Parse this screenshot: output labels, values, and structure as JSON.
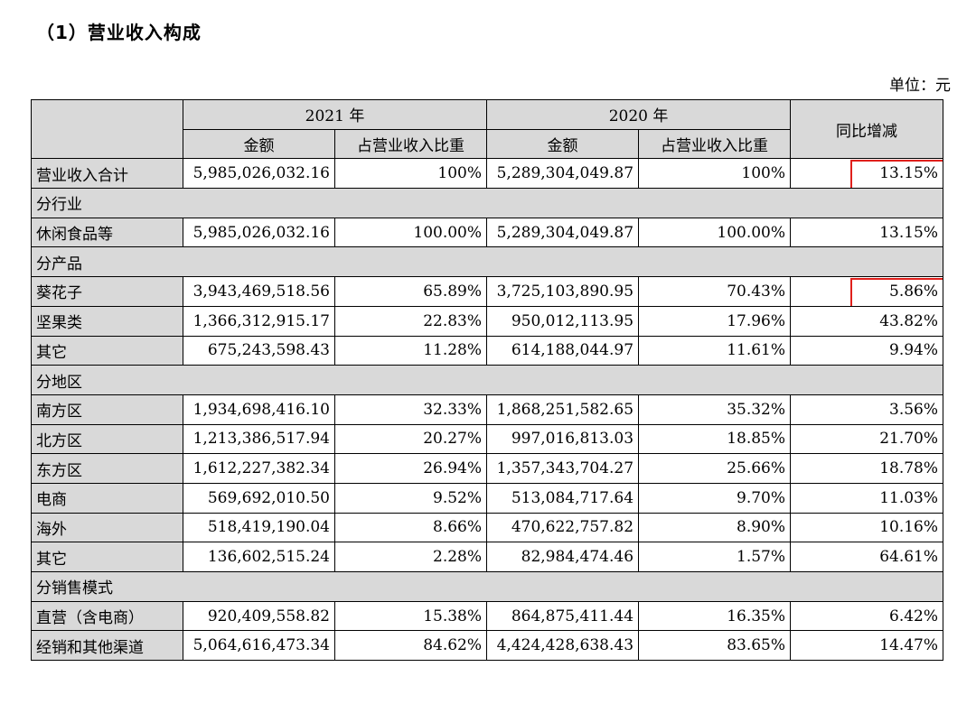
{
  "heading": "（1）营业收入构成",
  "unit_label": "单位：元",
  "headers": {
    "year_2021": "2021 年",
    "year_2020": "2020 年",
    "yoy": "同比增减",
    "amount": "金额",
    "ratio": "占营业收入比重"
  },
  "rows": [
    {
      "label": "营业收入合计",
      "a21": "5,985,026,032.16",
      "r21": "100%",
      "a20": "5,289,304,049.87",
      "r20": "100%",
      "yoy": "13.15%"
    },
    {
      "label": "分行业"
    },
    {
      "label": "休闲食品等",
      "a21": "5,985,026,032.16",
      "r21": "100.00%",
      "a20": "5,289,304,049.87",
      "r20": "100.00%",
      "yoy": "13.15%"
    },
    {
      "label": "分产品"
    },
    {
      "label": "葵花子",
      "a21": "3,943,469,518.56",
      "r21": "65.89%",
      "a20": "3,725,103,890.95",
      "r20": "70.43%",
      "yoy": "5.86%"
    },
    {
      "label": "坚果类",
      "a21": "1,366,312,915.17",
      "r21": "22.83%",
      "a20": "950,012,113.95",
      "r20": "17.96%",
      "yoy": "43.82%"
    },
    {
      "label": "其它",
      "a21": "675,243,598.43",
      "r21": "11.28%",
      "a20": "614,188,044.97",
      "r20": "11.61%",
      "yoy": "9.94%"
    },
    {
      "label": "分地区"
    },
    {
      "label": "南方区",
      "a21": "1,934,698,416.10",
      "r21": "32.33%",
      "a20": "1,868,251,582.65",
      "r20": "35.32%",
      "yoy": "3.56%"
    },
    {
      "label": "北方区",
      "a21": "1,213,386,517.94",
      "r21": "20.27%",
      "a20": "997,016,813.03",
      "r20": "18.85%",
      "yoy": "21.70%"
    },
    {
      "label": "东方区",
      "a21": "1,612,227,382.34",
      "r21": "26.94%",
      "a20": "1,357,343,704.27",
      "r20": "25.66%",
      "yoy": "18.78%"
    },
    {
      "label": "电商",
      "a21": "569,692,010.50",
      "r21": "9.52%",
      "a20": "513,084,717.64",
      "r20": "9.70%",
      "yoy": "11.03%"
    },
    {
      "label": "海外",
      "a21": "518,419,190.04",
      "r21": "8.66%",
      "a20": "470,622,757.82",
      "r20": "8.90%",
      "yoy": "10.16%"
    },
    {
      "label": "其它",
      "a21": "136,602,515.24",
      "r21": "2.28%",
      "a20": "82,984,474.46",
      "r20": "1.57%",
      "yoy": "64.61%"
    },
    {
      "label": "分销售模式"
    },
    {
      "label": "直营（含电商）",
      "a21": "920,409,558.82",
      "r21": "15.38%",
      "a20": "864,875,411.44",
      "r20": "16.35%",
      "yoy": "6.42%"
    },
    {
      "label": "经销和其他渠道",
      "a21": "5,064,616,473.34",
      "r21": "84.62%",
      "a20": "4,424,428,638.43",
      "r20": "83.65%",
      "yoy": "14.47%"
    }
  ],
  "highlight_color": "#e0201c",
  "section_fill": "#d9d9d9"
}
